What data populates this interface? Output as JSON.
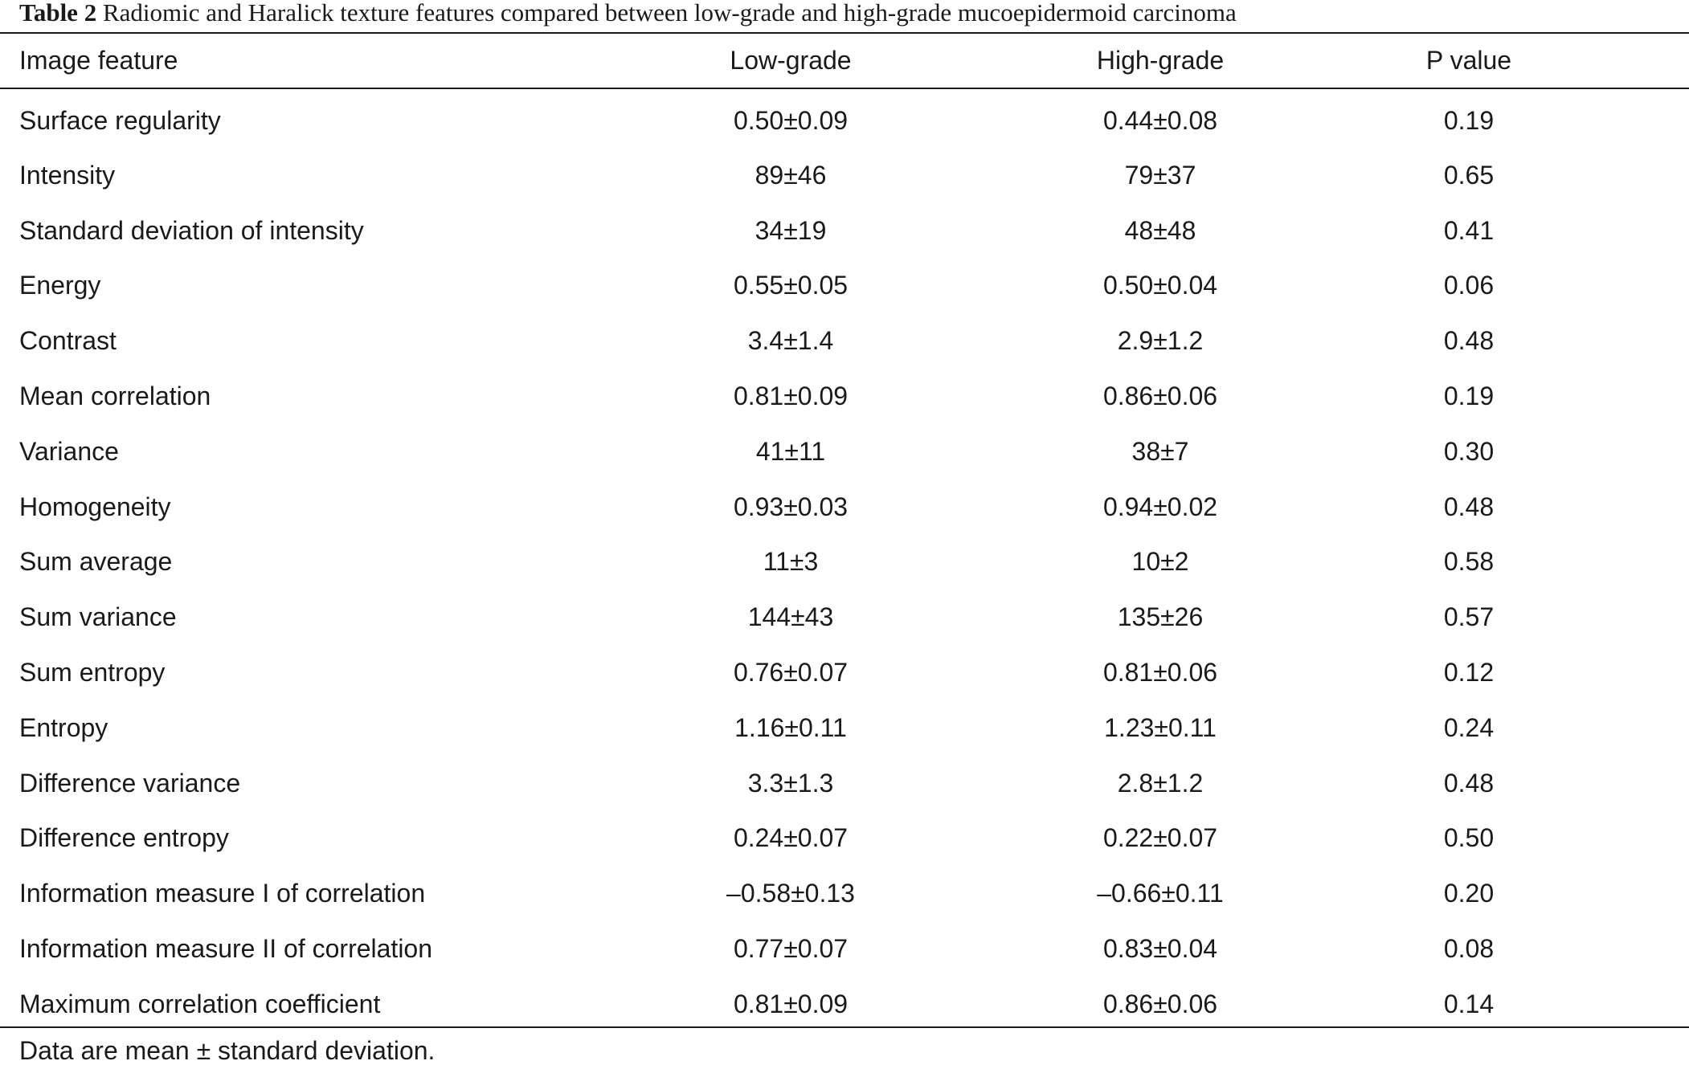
{
  "caption": {
    "label": "Table 2",
    "text": "Radiomic and Haralick texture features compared between low-grade and high-grade mucoepidermoid carcinoma"
  },
  "columns": [
    "Image feature",
    "Low-grade",
    "High-grade",
    "P value"
  ],
  "rows": [
    {
      "feature": "Surface regularity",
      "low": "0.50±0.09",
      "high": "0.44±0.08",
      "p": "0.19"
    },
    {
      "feature": "Intensity",
      "low": "89±46",
      "high": "79±37",
      "p": "0.65"
    },
    {
      "feature": "Standard deviation of intensity",
      "low": "34±19",
      "high": "48±48",
      "p": "0.41"
    },
    {
      "feature": "Energy",
      "low": "0.55±0.05",
      "high": "0.50±0.04",
      "p": "0.06"
    },
    {
      "feature": "Contrast",
      "low": "3.4±1.4",
      "high": "2.9±1.2",
      "p": "0.48"
    },
    {
      "feature": "Mean correlation",
      "low": "0.81±0.09",
      "high": "0.86±0.06",
      "p": "0.19"
    },
    {
      "feature": "Variance",
      "low": "41±11",
      "high": "38±7",
      "p": "0.30"
    },
    {
      "feature": "Homogeneity",
      "low": "0.93±0.03",
      "high": "0.94±0.02",
      "p": "0.48"
    },
    {
      "feature": "Sum average",
      "low": "11±3",
      "high": "10±2",
      "p": "0.58"
    },
    {
      "feature": "Sum variance",
      "low": "144±43",
      "high": "135±26",
      "p": "0.57"
    },
    {
      "feature": "Sum entropy",
      "low": "0.76±0.07",
      "high": "0.81±0.06",
      "p": "0.12"
    },
    {
      "feature": "Entropy",
      "low": "1.16±0.11",
      "high": "1.23±0.11",
      "p": "0.24"
    },
    {
      "feature": "Difference variance",
      "low": "3.3±1.3",
      "high": "2.8±1.2",
      "p": "0.48"
    },
    {
      "feature": "Difference entropy",
      "low": "0.24±0.07",
      "high": "0.22±0.07",
      "p": "0.50"
    },
    {
      "feature": "Information measure I of correlation",
      "low": "–0.58±0.13",
      "high": "–0.66±0.11",
      "p": "0.20"
    },
    {
      "feature": "Information measure II of correlation",
      "low": "0.77±0.07",
      "high": "0.83±0.04",
      "p": "0.08"
    },
    {
      "feature": "Maximum correlation coefficient",
      "low": "0.81±0.09",
      "high": "0.86±0.06",
      "p": "0.14"
    }
  ],
  "footnote": "Data are mean ± standard deviation."
}
